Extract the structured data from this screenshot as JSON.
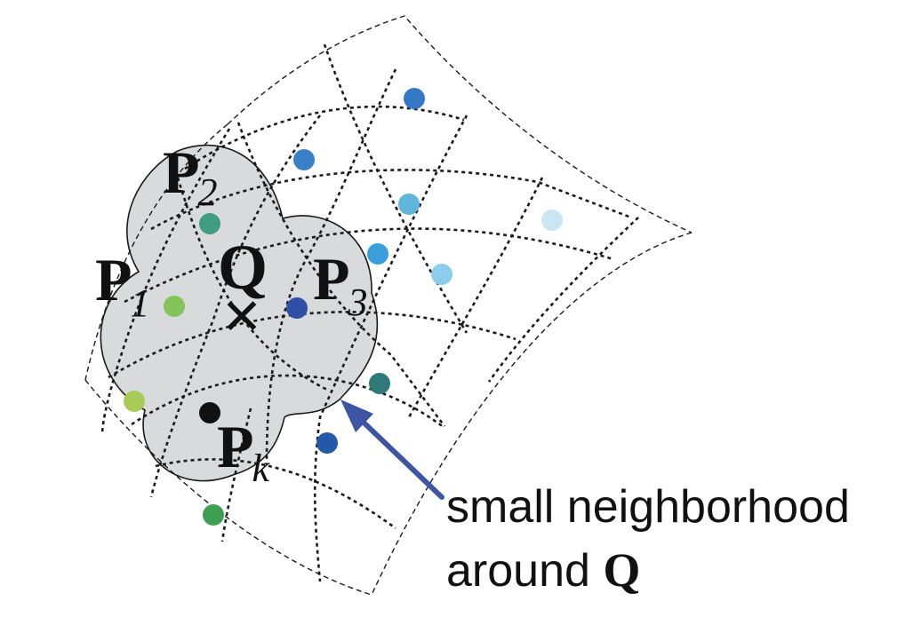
{
  "labels": {
    "p1": {
      "letter": "P",
      "sub": "1"
    },
    "p2": {
      "letter": "P",
      "sub": "2"
    },
    "p3": {
      "letter": "P",
      "sub": "3"
    },
    "pk": {
      "letter": "P",
      "sub": "k"
    },
    "q": "Q",
    "cross": "✕"
  },
  "annotation": {
    "line1": "small neighborhood",
    "line2_prefix": "around ",
    "line2_symbol": "Q"
  },
  "colors": {
    "neighborhood_fill": "#d9dadc",
    "arrow": "#3d55a3",
    "grid": "#1a1a1a",
    "point_dark": "#111111"
  },
  "points": [
    {
      "name": "point-green-p1",
      "color": "#82c35a"
    },
    {
      "name": "point-teal-p2",
      "color": "#3f9e82"
    },
    {
      "name": "point-navy-p3",
      "color": "#2f4ea6"
    },
    {
      "name": "point-black-pk",
      "color": "#111111"
    },
    {
      "name": "point-yellowgreen",
      "color": "#a8cb58"
    },
    {
      "name": "point-green-bottom",
      "color": "#3e9e52"
    },
    {
      "name": "point-blue-1",
      "color": "#3478c6"
    },
    {
      "name": "point-blue-2",
      "color": "#3b7fc9"
    },
    {
      "name": "point-skyblue-1",
      "color": "#5fb6da"
    },
    {
      "name": "point-skyblue-2",
      "color": "#3b9fdc"
    },
    {
      "name": "point-lightblue",
      "color": "#8ccdee"
    },
    {
      "name": "point-paleblue",
      "color": "#c9e6f4"
    },
    {
      "name": "point-darkteal",
      "color": "#2e7a78"
    },
    {
      "name": "point-darkblue",
      "color": "#2458a8"
    }
  ]
}
